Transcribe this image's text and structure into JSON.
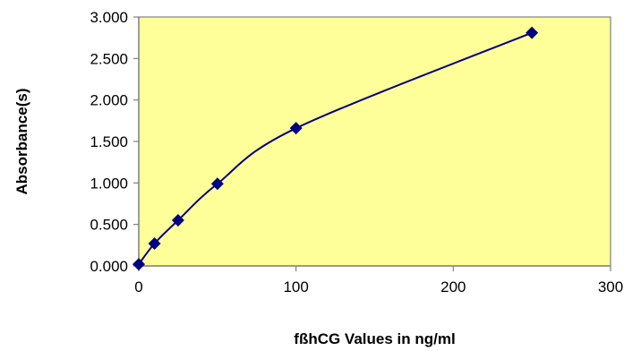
{
  "chart_data": {
    "type": "scatter",
    "title": "",
    "xlabel": "fßhCG Values in ng/ml",
    "ylabel": "Absorbance(s)",
    "xlim": [
      0,
      300
    ],
    "ylim": [
      0,
      3
    ],
    "x_ticks": [
      0,
      100,
      200,
      300
    ],
    "x_tick_labels": [
      "0",
      "100",
      "200",
      "300"
    ],
    "y_ticks": [
      0,
      0.5,
      1,
      1.5,
      2,
      2.5,
      3
    ],
    "y_tick_labels": [
      "0.000",
      "0.500",
      "1.000",
      "1.500",
      "2.000",
      "2.500",
      "3.000"
    ],
    "grid": false,
    "smooth_line": true,
    "marker": "diamond",
    "series": [
      {
        "x": [
          0,
          10,
          25,
          50,
          100,
          250
        ],
        "y": [
          0.02,
          0.27,
          0.55,
          0.99,
          1.66,
          2.81
        ]
      }
    ]
  },
  "colors": {
    "plot_background": "#ffff99",
    "series": "#000080",
    "axis": "#808080"
  }
}
